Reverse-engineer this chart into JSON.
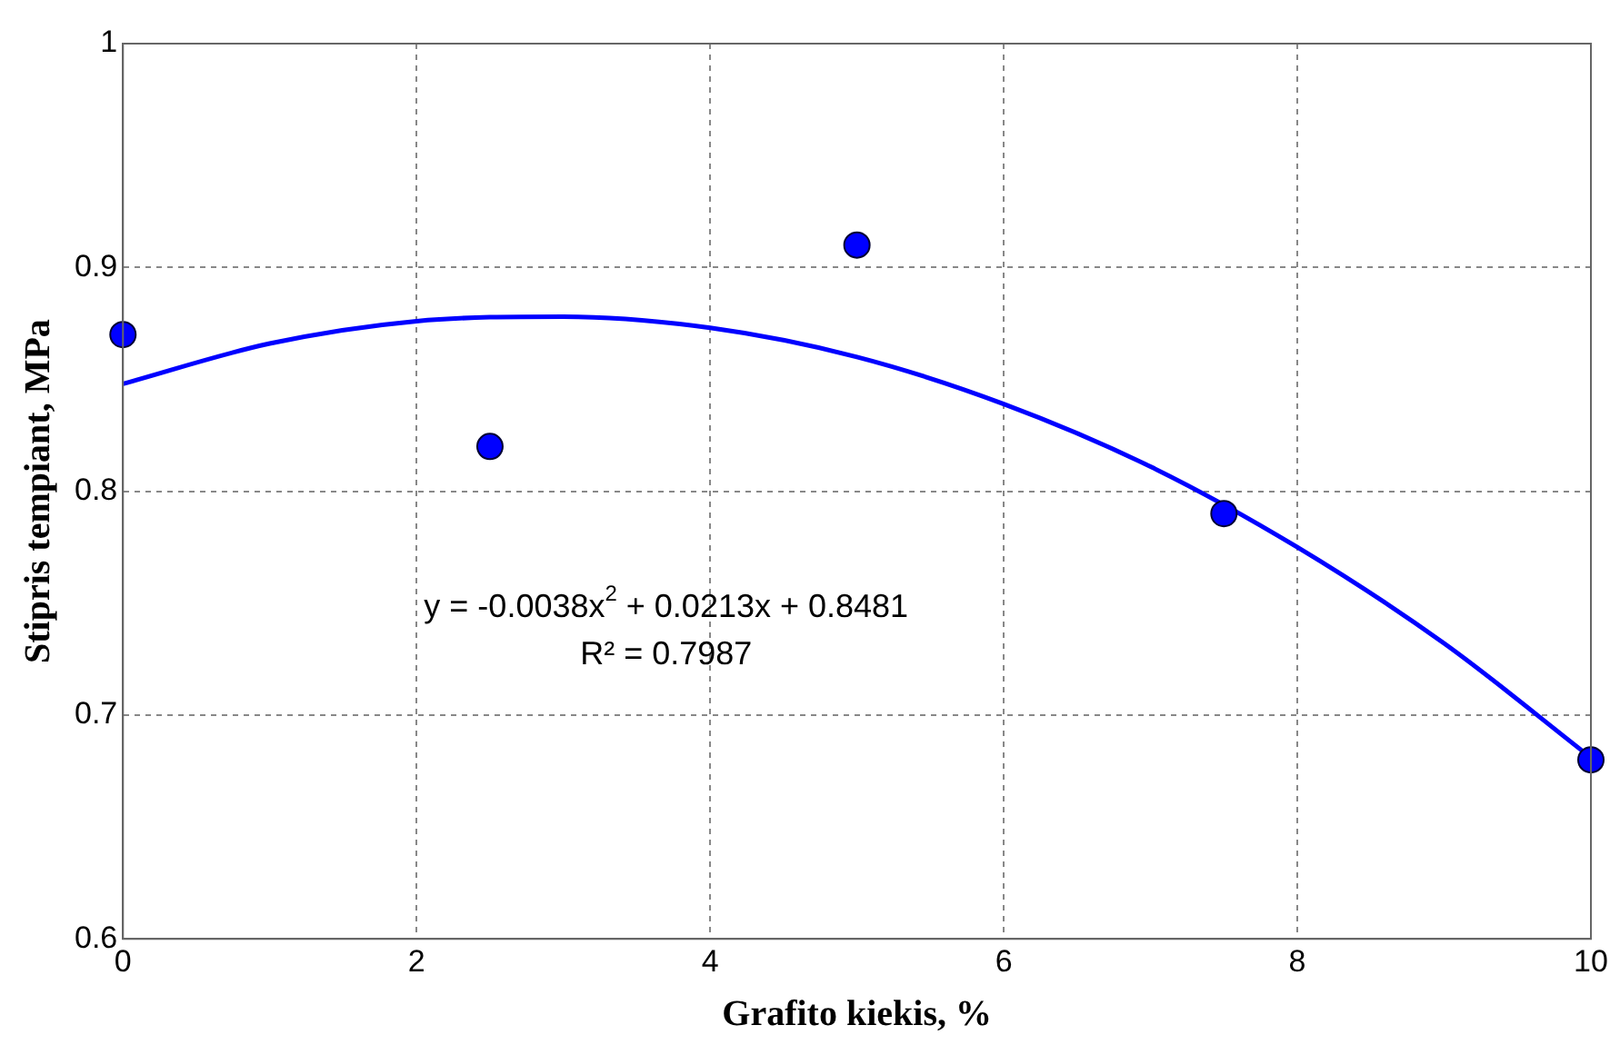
{
  "chart_data": {
    "type": "scatter",
    "xlabel": "Grafito kiekis, %",
    "ylabel": "Stipris tempiant, MPa",
    "xlim": [
      0,
      10
    ],
    "xticks": [
      0,
      2,
      4,
      6,
      8,
      10
    ],
    "ylim": [
      0.6,
      1
    ],
    "yticks": [
      0.6,
      0.7,
      0.8,
      0.9,
      1
    ],
    "grid": true,
    "legend": false,
    "marker": "circle",
    "series": [
      {
        "type": "scatter",
        "color": "#0000ff",
        "x": [
          0,
          2.5,
          5,
          7.5,
          10
        ],
        "values": [
          0.87,
          0.82,
          0.91,
          0.79,
          0.68
        ]
      },
      {
        "type": "line",
        "color": "#0000ff",
        "marker": "none",
        "line_style": "solid",
        "x": [
          0,
          1,
          2,
          3,
          4,
          5,
          6,
          7,
          8,
          9,
          10
        ],
        "values": [
          0.848,
          0.866,
          0.876,
          0.878,
          0.873,
          0.86,
          0.839,
          0.811,
          0.775,
          0.732,
          0.681
        ]
      }
    ],
    "annotations": [
      "y = -0.0038x$^{2}$ + 0.0213x + 0.8481",
      "R² = 0.7987"
    ]
  }
}
